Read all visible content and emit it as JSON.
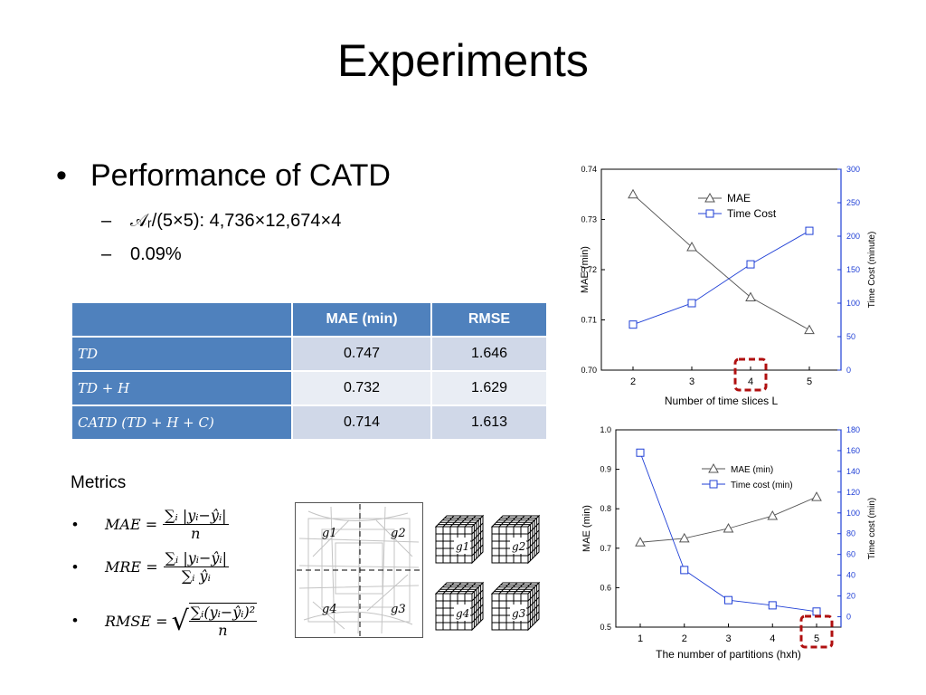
{
  "slide": {
    "title": "Experiments",
    "bullet_dot": "•",
    "main_bullet": "Performance of CATD",
    "sub_dash": "–",
    "sub_items": [
      "𝒜ᵣ/(5×5): 4,736×12,674×4",
      "0.09%"
    ]
  },
  "table": {
    "headers": [
      "",
      "MAE (min)",
      "RMSE"
    ],
    "rows": [
      {
        "label": "TD",
        "mae": "0.747",
        "rmse": "1.646"
      },
      {
        "label": "TD + H",
        "mae": "0.732",
        "rmse": "1.629"
      },
      {
        "label": "CATD (TD + H + C)",
        "mae": "0.714",
        "rmse": "1.613"
      }
    ]
  },
  "metrics": {
    "heading": "Metrics",
    "items": [
      {
        "lhs": "MAE =",
        "num": "∑ᵢ |yᵢ−ŷᵢ|",
        "den": "n"
      },
      {
        "lhs": "MRE =",
        "num": "∑ᵢ |yᵢ−ŷᵢ|",
        "den": "∑ᵢ ŷᵢ"
      },
      {
        "lhs": "RMSE =",
        "num": "∑ᵢ(yᵢ−ŷᵢ)²",
        "den": "n"
      }
    ]
  },
  "grid_figure": {
    "map_labels": [
      "g1",
      "g2",
      "g4",
      "g3"
    ],
    "cube_labels": [
      "g1",
      "g2",
      "g4",
      "g3"
    ]
  },
  "chart_data": [
    {
      "type": "line",
      "x": [
        2,
        3,
        4,
        5
      ],
      "xlabel": "Number of time slices L",
      "ylabel": "MAE (min)",
      "ylabel_right": "Time Cost (minute)",
      "ylim": [
        0.7,
        0.74
      ],
      "ylim_right": [
        0,
        300
      ],
      "yticks": [
        "0.70",
        "0.71",
        "0.72",
        "0.73",
        "0.74"
      ],
      "yticks_right": [
        "0",
        "50",
        "100",
        "150",
        "200",
        "250",
        "300"
      ],
      "xticks": [
        "2",
        "3",
        "4",
        "5"
      ],
      "legend_position": "top-right",
      "series": [
        {
          "name": "MAE",
          "axis": "left",
          "marker": "triangle",
          "color": "#555555",
          "values": [
            0.735,
            0.7245,
            0.7145,
            0.708
          ]
        },
        {
          "name": "Time Cost",
          "axis": "right",
          "marker": "square",
          "color": "#1f3fd6",
          "values": [
            68,
            100,
            158,
            208
          ]
        }
      ],
      "highlight_x": 4
    },
    {
      "type": "line",
      "x": [
        1,
        2,
        3,
        4,
        5
      ],
      "xlabel": "The number of partitions (hxh)",
      "ylabel": "MAE (min)",
      "ylabel_right": "Time cost (min)",
      "ylim": [
        0.5,
        1.0
      ],
      "ylim_right": [
        -10,
        180
      ],
      "yticks": [
        "0.5",
        "0.6",
        "0.7",
        "0.8",
        "0.9",
        "1.0"
      ],
      "yticks_right": [
        "0",
        "20",
        "40",
        "60",
        "80",
        "100",
        "120",
        "140",
        "160",
        "180"
      ],
      "xticks": [
        "1",
        "2",
        "3",
        "4",
        "5"
      ],
      "legend_position": "top-right",
      "series": [
        {
          "name": "MAE (min)",
          "axis": "left",
          "marker": "triangle",
          "color": "#555555",
          "values": [
            0.715,
            0.725,
            0.75,
            0.782,
            0.83
          ]
        },
        {
          "name": "Time cost (min)",
          "axis": "right",
          "marker": "square",
          "color": "#1f3fd6",
          "values": [
            158,
            45,
            16,
            11,
            5
          ]
        }
      ],
      "highlight_x": 5
    }
  ]
}
